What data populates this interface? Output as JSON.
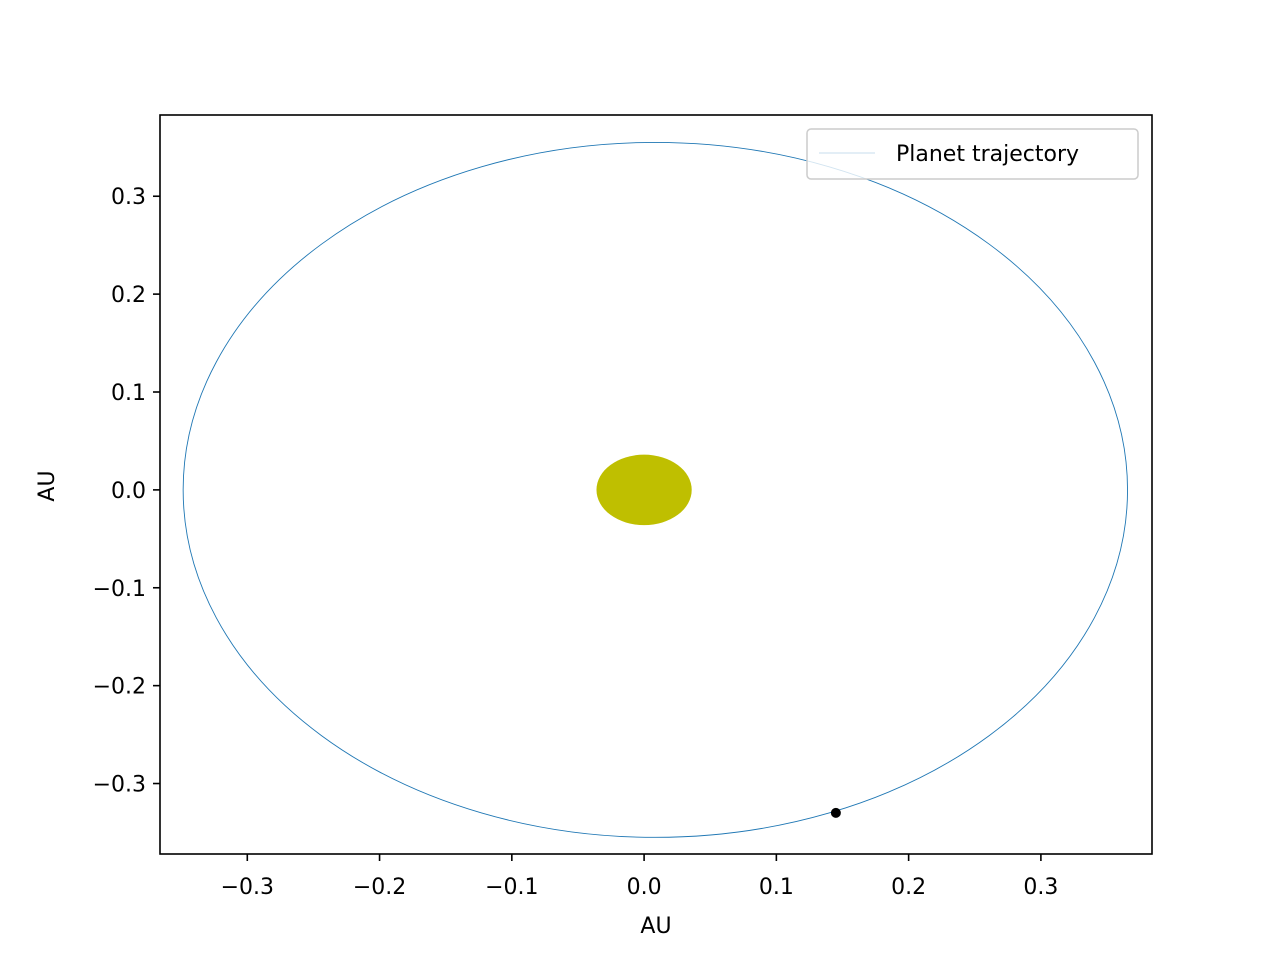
{
  "chart_data": {
    "type": "scatter",
    "xlabel": "AU",
    "ylabel": "AU",
    "xlim": [
      -0.366,
      0.384
    ],
    "ylim": [
      -0.372,
      0.383
    ],
    "x_ticks": [
      {
        "value": -0.3,
        "label": "−0.3"
      },
      {
        "value": -0.2,
        "label": "−0.2"
      },
      {
        "value": -0.1,
        "label": "−0.1"
      },
      {
        "value": 0.0,
        "label": "0.0"
      },
      {
        "value": 0.1,
        "label": "0.1"
      },
      {
        "value": 0.2,
        "label": "0.2"
      },
      {
        "value": 0.3,
        "label": "0.3"
      }
    ],
    "y_ticks": [
      {
        "value": 0.3,
        "label": "0.3"
      },
      {
        "value": 0.2,
        "label": "0.2"
      },
      {
        "value": 0.1,
        "label": "0.1"
      },
      {
        "value": 0.0,
        "label": "0.0"
      },
      {
        "value": -0.1,
        "label": "−0.1"
      },
      {
        "value": -0.2,
        "label": "−0.2"
      },
      {
        "value": -0.3,
        "label": "−0.3"
      }
    ],
    "grid": false,
    "legend": {
      "position": "top-right",
      "entries": [
        "Planet trajectory"
      ]
    },
    "series": [
      {
        "name": "Planet trajectory",
        "kind": "ellipse-orbit",
        "center": [
          0.0085,
          0.0
        ],
        "semi_major_x": 0.357,
        "semi_minor_y": 0.355,
        "color": "#1f77b4"
      }
    ],
    "star": {
      "center": [
        0.0,
        0.0
      ],
      "radius_x": 0.036,
      "radius_y": 0.036,
      "color": "#bfbf00"
    },
    "planet": {
      "position": [
        0.145,
        -0.33
      ],
      "color": "#000000"
    }
  }
}
